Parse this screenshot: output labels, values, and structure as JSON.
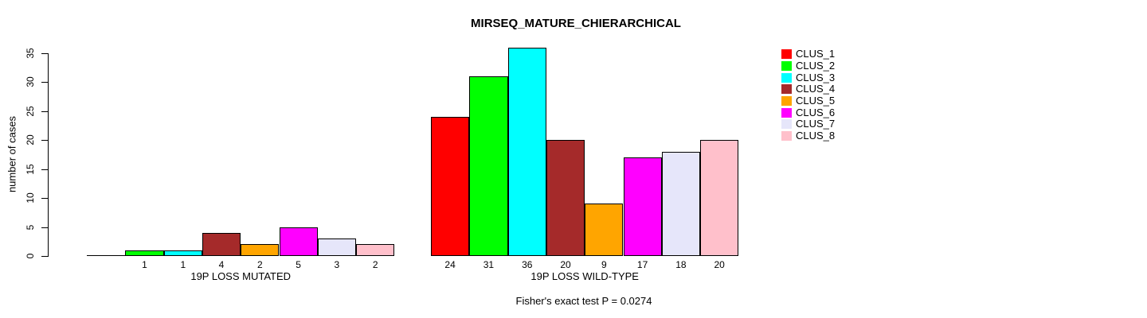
{
  "figure": {
    "background": "#FFFFFF"
  },
  "chart_data": {
    "type": "bar",
    "title": "MIRSEQ_MATURE_CHIERARCHICAL",
    "ylabel": "number of cases",
    "xlabel": "",
    "ylim": [
      0,
      35
    ],
    "yticks": [
      0,
      5,
      10,
      15,
      20,
      25,
      30,
      35
    ],
    "grid": false,
    "legend_position": "top-right",
    "legend": [
      {
        "label": "CLUS_1",
        "color": "#FF0000"
      },
      {
        "label": "CLUS_2",
        "color": "#00FF00"
      },
      {
        "label": "CLUS_3",
        "color": "#00FFFF"
      },
      {
        "label": "CLUS_4",
        "color": "#A52A2A"
      },
      {
        "label": "CLUS_5",
        "color": "#FFA500"
      },
      {
        "label": "CLUS_6",
        "color": "#FF00FF"
      },
      {
        "label": "CLUS_7",
        "color": "#E6E6FA"
      },
      {
        "label": "CLUS_8",
        "color": "#FFC0CB"
      }
    ],
    "categories": [
      "CLUS_1",
      "CLUS_2",
      "CLUS_3",
      "CLUS_4",
      "CLUS_5",
      "CLUS_6",
      "CLUS_7",
      "CLUS_8"
    ],
    "groups": [
      {
        "label": "19P LOSS MUTATED",
        "values": [
          0,
          1,
          1,
          4,
          2,
          5,
          3,
          2
        ],
        "bar_labels": [
          "",
          "1",
          "1",
          "4",
          "2",
          "5",
          "3",
          "2"
        ]
      },
      {
        "label": "19P LOSS WILD-TYPE",
        "values": [
          24,
          31,
          36,
          20,
          9,
          17,
          18,
          20
        ],
        "bar_labels": [
          "24",
          "31",
          "36",
          "20",
          "9",
          "17",
          "18",
          "20"
        ]
      }
    ],
    "annotation": "Fisher's exact test P = 0.0274"
  }
}
